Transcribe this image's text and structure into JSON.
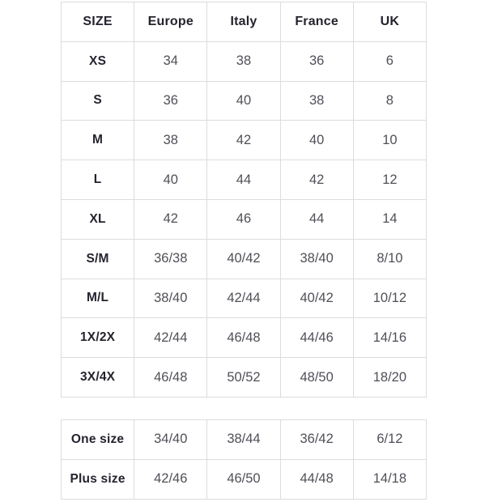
{
  "chart_data": [
    {
      "type": "table",
      "name": "size-conversion-table",
      "columns": [
        "SIZE",
        "Europe",
        "Italy",
        "France",
        "UK"
      ],
      "rows": [
        [
          "XS",
          "34",
          "38",
          "36",
          "6"
        ],
        [
          "S",
          "36",
          "40",
          "38",
          "8"
        ],
        [
          "M",
          "38",
          "42",
          "40",
          "10"
        ],
        [
          "L",
          "40",
          "44",
          "42",
          "12"
        ],
        [
          "XL",
          "42",
          "46",
          "44",
          "14"
        ],
        [
          "S/M",
          "36/38",
          "40/42",
          "38/40",
          "8/10"
        ],
        [
          "M/L",
          "38/40",
          "42/44",
          "40/42",
          "10/12"
        ],
        [
          "1X/2X",
          "42/44",
          "46/48",
          "44/46",
          "14/16"
        ],
        [
          "3X/4X",
          "46/48",
          "50/52",
          "48/50",
          "18/20"
        ]
      ]
    },
    {
      "type": "table",
      "name": "special-sizes-table",
      "columns": null,
      "rows": [
        [
          "One size",
          "34/40",
          "38/44",
          "36/42",
          "6/12"
        ],
        [
          "Plus size",
          "42/46",
          "46/50",
          "44/48",
          "14/18"
        ]
      ]
    }
  ],
  "colors": {
    "header_text": "#24242f",
    "value_text": "#4f5058",
    "border": "#dcdcdc",
    "background": "#ffffff"
  }
}
